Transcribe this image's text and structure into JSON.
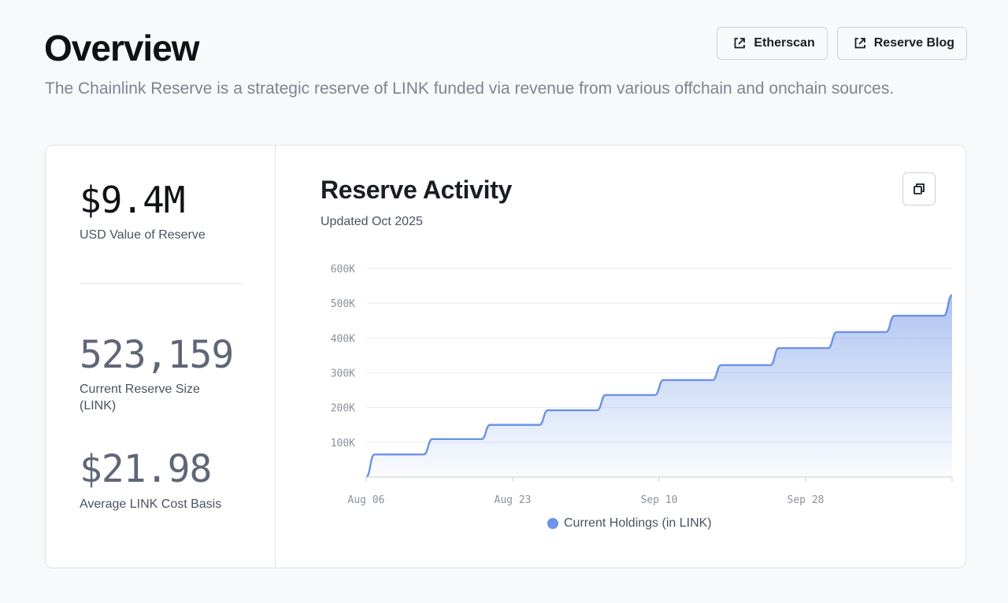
{
  "header": {
    "title": "Overview",
    "description": "The Chainlink Reserve is a strategic reserve of LINK funded via revenue from various offchain and onchain sources.",
    "buttons": [
      {
        "label": "Etherscan",
        "icon": "external-link-icon"
      },
      {
        "label": "Reserve Blog",
        "icon": "external-link-icon"
      }
    ]
  },
  "metrics": {
    "usd_value": "$9.4M",
    "usd_value_label": "USD Value of Reserve",
    "reserve_size": "523,159",
    "reserve_size_label": "Current Reserve Size (LINK)",
    "cost_basis": "$21.98",
    "cost_basis_label": "Average LINK Cost Basis"
  },
  "chart": {
    "title": "Reserve Activity",
    "subtitle": "Updated Oct 2025",
    "copy_icon": "copy-icon",
    "legend_label": "Current Holdings (in LINK)",
    "accent_color": "#6b93e6"
  },
  "chart_data": {
    "type": "area",
    "step": true,
    "x_tick_labels": [
      "Aug 06",
      "Aug 23",
      "Sep 10",
      "Sep 28"
    ],
    "y_tick_labels": [
      "100K",
      "200K",
      "300K",
      "400K",
      "500K",
      "600K"
    ],
    "ylim": [
      0,
      600000
    ],
    "grid": true,
    "legend": "bottom",
    "series": [
      {
        "name": "Current Holdings (in LINK)",
        "color": "#6b93e6",
        "x": [
          "2025-08-06",
          "2025-08-07",
          "2025-08-13",
          "2025-08-14",
          "2025-08-20",
          "2025-08-21",
          "2025-08-27",
          "2025-08-28",
          "2025-09-03",
          "2025-09-04",
          "2025-09-10",
          "2025-09-11",
          "2025-09-17",
          "2025-09-18",
          "2025-09-24",
          "2025-09-25",
          "2025-10-01",
          "2025-10-02",
          "2025-10-08",
          "2025-10-09",
          "2025-10-15",
          "2025-10-16"
        ],
        "y": [
          0,
          65000,
          65000,
          109000,
          109000,
          150000,
          150000,
          192000,
          192000,
          236000,
          236000,
          279000,
          279000,
          322000,
          322000,
          371000,
          371000,
          417000,
          417000,
          464000,
          464000,
          523159
        ]
      }
    ]
  }
}
